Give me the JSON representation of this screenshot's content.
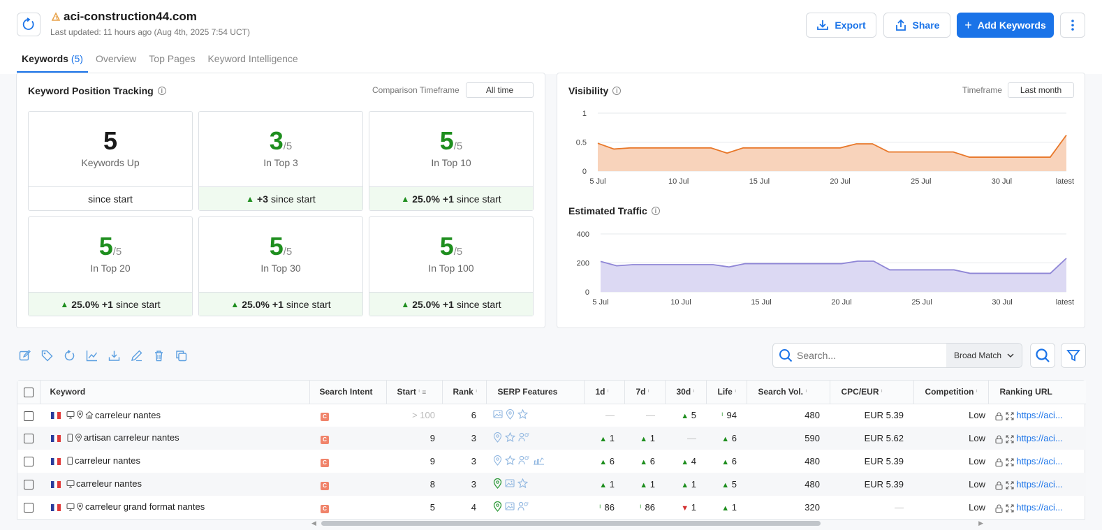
{
  "header": {
    "domain": "aci-construction44.com",
    "last_updated": "Last updated: 11 hours ago (Aug 4th, 2025 7:54 UCT)",
    "export_label": "Export",
    "share_label": "Share",
    "add_keywords_label": "Add Keywords"
  },
  "tabs": [
    {
      "label": "Keywords",
      "count": "(5)"
    },
    {
      "label": "Overview"
    },
    {
      "label": "Top Pages"
    },
    {
      "label": "Keyword Intelligence"
    }
  ],
  "position_tracking": {
    "title": "Keyword Position Tracking",
    "timeframe_label": "Comparison Timeframe",
    "timeframe_value": "All time",
    "cards": [
      {
        "num": "5",
        "den": "",
        "label": "Keywords Up",
        "pct": "",
        "change": "",
        "foot": "since start",
        "green": false
      },
      {
        "num": "3",
        "den": "/5",
        "label": "In Top 3",
        "pct": "",
        "change": "+3",
        "foot": "since start",
        "green": true
      },
      {
        "num": "5",
        "den": "/5",
        "label": "In Top 10",
        "pct": "25.0%",
        "change": "+1",
        "foot": "since start",
        "green": true
      },
      {
        "num": "5",
        "den": "/5",
        "label": "In Top 20",
        "pct": "25.0%",
        "change": "+1",
        "foot": "since start",
        "green": true
      },
      {
        "num": "5",
        "den": "/5",
        "label": "In Top 30",
        "pct": "25.0%",
        "change": "+1",
        "foot": "since start",
        "green": true
      },
      {
        "num": "5",
        "den": "/5",
        "label": "In Top 100",
        "pct": "25.0%",
        "change": "+1",
        "foot": "since start",
        "green": true
      }
    ]
  },
  "visibility": {
    "title": "Visibility",
    "timeframe_label": "Timeframe",
    "timeframe_value": "Last month"
  },
  "traffic": {
    "title": "Estimated Traffic"
  },
  "chart_data": [
    {
      "type": "area",
      "title": "Visibility",
      "x": [
        "5 Jul",
        "6 Jul",
        "7 Jul",
        "8 Jul",
        "9 Jul",
        "10 Jul",
        "11 Jul",
        "12 Jul",
        "13 Jul",
        "14 Jul",
        "15 Jul",
        "16 Jul",
        "17 Jul",
        "18 Jul",
        "19 Jul",
        "20 Jul",
        "21 Jul",
        "22 Jul",
        "23 Jul",
        "24 Jul",
        "25 Jul",
        "26 Jul",
        "27 Jul",
        "28 Jul",
        "29 Jul",
        "30 Jul",
        "31 Jul",
        "1 Aug",
        "2 Aug",
        "latest"
      ],
      "x_ticks": [
        "5 Jul",
        "10 Jul",
        "15 Jul",
        "20 Jul",
        "25 Jul",
        "30 Jul",
        "latest"
      ],
      "values": [
        0.48,
        0.38,
        0.4,
        0.4,
        0.4,
        0.4,
        0.4,
        0.4,
        0.31,
        0.4,
        0.4,
        0.4,
        0.4,
        0.4,
        0.4,
        0.4,
        0.47,
        0.47,
        0.33,
        0.33,
        0.33,
        0.33,
        0.33,
        0.24,
        0.24,
        0.24,
        0.24,
        0.24,
        0.24,
        0.62
      ],
      "yticks": [
        "0",
        "0.5",
        "1"
      ],
      "ylim": [
        0,
        1
      ],
      "color": "#e8782a",
      "fill": "#f8d3bb"
    },
    {
      "type": "area",
      "title": "Estimated Traffic",
      "x": [
        "5 Jul",
        "6 Jul",
        "7 Jul",
        "8 Jul",
        "9 Jul",
        "10 Jul",
        "11 Jul",
        "12 Jul",
        "13 Jul",
        "14 Jul",
        "15 Jul",
        "16 Jul",
        "17 Jul",
        "18 Jul",
        "19 Jul",
        "20 Jul",
        "21 Jul",
        "22 Jul",
        "23 Jul",
        "24 Jul",
        "25 Jul",
        "26 Jul",
        "27 Jul",
        "28 Jul",
        "29 Jul",
        "30 Jul",
        "31 Jul",
        "1 Aug",
        "2 Aug",
        "latest"
      ],
      "x_ticks": [
        "5 Jul",
        "10 Jul",
        "15 Jul",
        "20 Jul",
        "25 Jul",
        "30 Jul",
        "latest"
      ],
      "values": [
        210,
        180,
        188,
        188,
        188,
        188,
        188,
        188,
        172,
        195,
        195,
        195,
        195,
        195,
        195,
        195,
        212,
        212,
        152,
        152,
        152,
        152,
        152,
        128,
        128,
        128,
        128,
        128,
        128,
        232
      ],
      "yticks": [
        "0",
        "200",
        "400"
      ],
      "ylim": [
        0,
        400
      ],
      "color": "#8f86d6",
      "fill": "#dcd9f3"
    }
  ],
  "search": {
    "placeholder": "Search...",
    "match_type": "Broad Match"
  },
  "table": {
    "columns": [
      "Keyword",
      "Search Intent",
      "Start",
      "Rank",
      "SERP Features",
      "1d",
      "7d",
      "30d",
      "Life",
      "Search Vol.",
      "CPC/EUR",
      "Competition",
      "Ranking URL"
    ],
    "rows": [
      {
        "keyword": "carreleur nantes",
        "devices": [
          "desktop",
          "pin",
          "home"
        ],
        "intent": "C",
        "start": "> 100",
        "start_muted": true,
        "rank": "6",
        "serp": [
          "image",
          "pin",
          "star"
        ],
        "d1": "—",
        "d1_dir": "none",
        "d7": "—",
        "d7_dir": "none",
        "d30": "5",
        "d30_dir": "up",
        "life": "94",
        "life_dir": "tick",
        "vol": "480",
        "cpc": "EUR 5.39",
        "comp": "Low",
        "url": "https://aci..."
      },
      {
        "keyword": "artisan carreleur nantes",
        "devices": [
          "mobile",
          "pin"
        ],
        "intent": "C",
        "start": "9",
        "start_muted": false,
        "rank": "3",
        "serp": [
          "pin",
          "star",
          "people"
        ],
        "d1": "1",
        "d1_dir": "up",
        "d7": "1",
        "d7_dir": "up",
        "d30": "—",
        "d30_dir": "none",
        "life": "6",
        "life_dir": "up",
        "vol": "590",
        "cpc": "EUR 5.62",
        "comp": "Low",
        "url": "https://aci..."
      },
      {
        "keyword": "carreleur nantes",
        "devices": [
          "mobile"
        ],
        "intent": "C",
        "start": "9",
        "start_muted": false,
        "rank": "3",
        "serp": [
          "pin",
          "star",
          "people",
          "chart"
        ],
        "d1": "6",
        "d1_dir": "up",
        "d7": "6",
        "d7_dir": "up",
        "d30": "4",
        "d30_dir": "up",
        "life": "6",
        "life_dir": "up",
        "vol": "480",
        "cpc": "EUR 5.39",
        "comp": "Low",
        "url": "https://aci..."
      },
      {
        "keyword": "carreleur nantes",
        "devices": [
          "desktop"
        ],
        "intent": "C",
        "start": "8",
        "start_muted": false,
        "rank": "3",
        "serp": [
          "pin-green",
          "image",
          "star"
        ],
        "d1": "1",
        "d1_dir": "up",
        "d7": "1",
        "d7_dir": "up",
        "d30": "1",
        "d30_dir": "up",
        "life": "5",
        "life_dir": "up",
        "vol": "480",
        "cpc": "EUR 5.39",
        "comp": "Low",
        "url": "https://aci..."
      },
      {
        "keyword": "carreleur grand format nantes",
        "devices": [
          "desktop",
          "pin"
        ],
        "intent": "C",
        "start": "5",
        "start_muted": false,
        "rank": "4",
        "serp": [
          "pin-green",
          "image",
          "people"
        ],
        "d1": "86",
        "d1_dir": "tick",
        "d7": "86",
        "d7_dir": "tick",
        "d30": "1",
        "d30_dir": "down",
        "life": "1",
        "life_dir": "up",
        "vol": "320",
        "cpc": "—",
        "comp": "Low",
        "url": "https://aci..."
      }
    ]
  }
}
